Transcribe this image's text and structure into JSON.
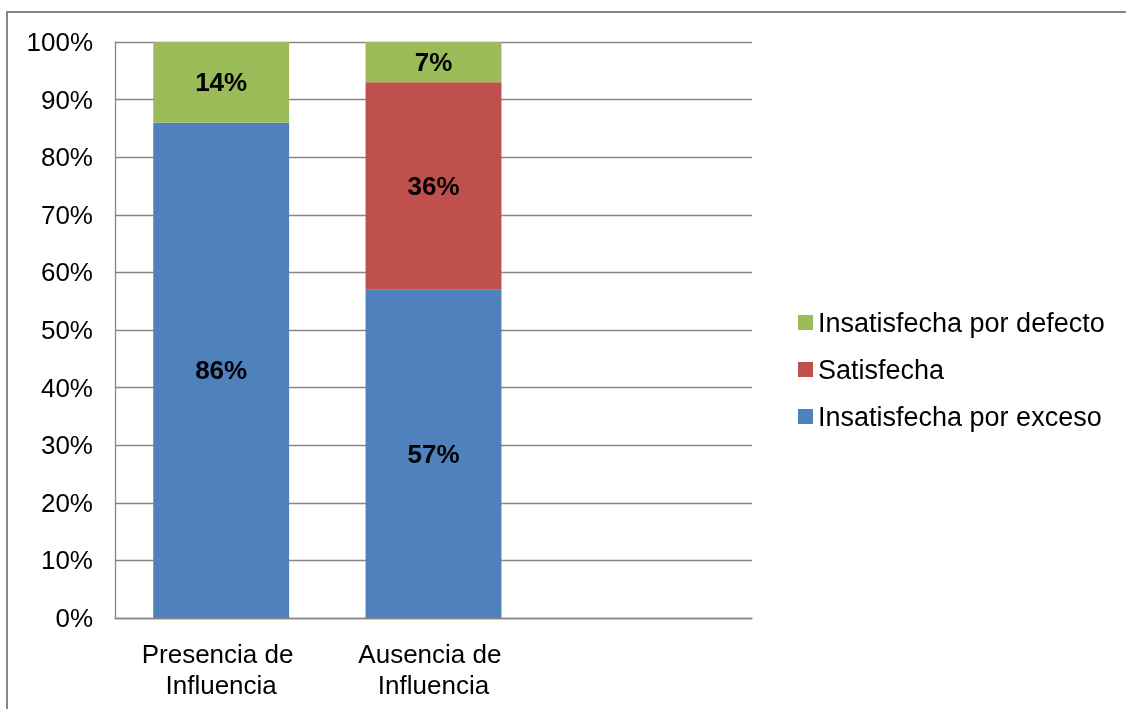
{
  "chart_data": {
    "type": "bar",
    "stacked": true,
    "categories": [
      "Presencia de Influencia",
      "Ausencia de Influencia",
      null
    ],
    "series": [
      {
        "name": "Insatisfecha por exceso",
        "color": "#4f81bd",
        "values": [
          86,
          57,
          null
        ],
        "value_labels": [
          "86%",
          "57%",
          null
        ]
      },
      {
        "name": "Satisfecha",
        "color": "#c0504d",
        "values": [
          null,
          36,
          null
        ],
        "value_labels": [
          null,
          "36%",
          null
        ]
      },
      {
        "name": "Insatisfecha por defecto",
        "color": "#9bbb59",
        "values": [
          14,
          7,
          null
        ],
        "value_labels": [
          "14%",
          "7%",
          null
        ]
      }
    ],
    "ylim": [
      0,
      100
    ],
    "yticks": [
      {
        "value": 0,
        "label": "0%"
      },
      {
        "value": 10,
        "label": "10%"
      },
      {
        "value": 20,
        "label": "20%"
      },
      {
        "value": 30,
        "label": "30%"
      },
      {
        "value": 40,
        "label": "40%"
      },
      {
        "value": 50,
        "label": "50%"
      },
      {
        "value": 60,
        "label": "60%"
      },
      {
        "value": 70,
        "label": "70%"
      },
      {
        "value": 80,
        "label": "80%"
      },
      {
        "value": 90,
        "label": "90%"
      },
      {
        "value": 100,
        "label": "100%"
      }
    ],
    "grid": "y",
    "legend": "right"
  }
}
